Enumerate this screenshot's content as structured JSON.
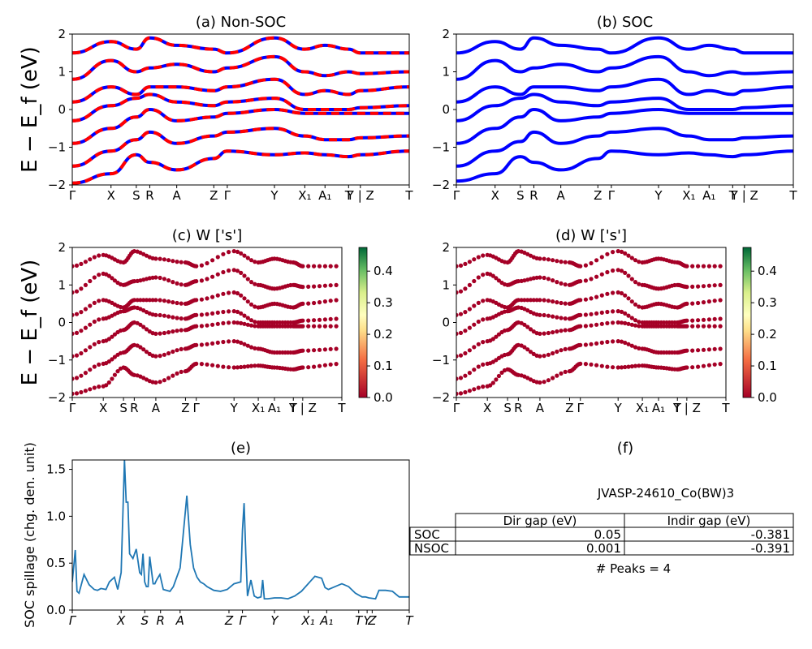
{
  "figure": {
    "table_title": "JVASP-24610_Co(BW)3",
    "peaks_text": "# Peaks = 4",
    "table": {
      "headers": [
        "",
        "Dir gap (eV)",
        "Indir gap (eV)"
      ],
      "rows": [
        {
          "label": "SOC",
          "dir": "0.05",
          "indir": "-0.381"
        },
        {
          "label": "NSOC",
          "dir": "0.001",
          "indir": "-0.391"
        }
      ]
    },
    "colors": {
      "nonsoc": "#ff0000",
      "soc": "#0000ff",
      "proj": "#a50026",
      "spillage": "#1f77b4"
    }
  },
  "chart_data": [
    {
      "panel": "a",
      "type": "line",
      "title": "(a) Non-SOC",
      "ylabel": "E − E_f (eV)",
      "ylim": [
        -2,
        2
      ],
      "yticks": [
        "2",
        "1",
        "0",
        "−1",
        "−2"
      ],
      "xticks": [
        "Γ",
        "X",
        "S",
        "R",
        "A",
        "Z",
        "Γ",
        "Y",
        "X₁",
        "A₁",
        "T",
        "Y | Z",
        "T"
      ],
      "series": [
        {
          "values": [
            -1.95,
            -1.7,
            -1.2,
            -1.4,
            -1.6,
            -1.3,
            -1.1,
            -1.2,
            -1.15,
            -1.2,
            -1.25,
            -1.2,
            -1.1
          ]
        },
        {
          "values": [
            -1.5,
            -1.1,
            -0.8,
            -0.6,
            -0.9,
            -0.7,
            -0.6,
            -0.5,
            -0.7,
            -0.8,
            -0.8,
            -0.75,
            -0.7
          ]
        },
        {
          "values": [
            -0.9,
            -0.5,
            -0.2,
            0.0,
            -0.3,
            -0.2,
            -0.1,
            0.0,
            -0.1,
            -0.1,
            -0.1,
            -0.1,
            -0.1
          ]
        },
        {
          "values": [
            -0.3,
            0.1,
            0.3,
            0.4,
            0.2,
            0.1,
            0.2,
            0.3,
            0.0,
            0.0,
            0.0,
            0.05,
            0.1
          ]
        },
        {
          "values": [
            0.2,
            0.6,
            0.4,
            0.6,
            0.6,
            0.5,
            0.6,
            0.8,
            0.4,
            0.5,
            0.4,
            0.5,
            0.6
          ]
        },
        {
          "values": [
            0.8,
            1.3,
            1.0,
            1.1,
            1.2,
            1.0,
            1.1,
            1.4,
            1.0,
            0.9,
            1.0,
            0.95,
            1.0
          ]
        },
        {
          "values": [
            1.5,
            1.8,
            1.6,
            1.9,
            1.7,
            1.6,
            1.5,
            1.9,
            1.6,
            1.7,
            1.6,
            1.5,
            1.5
          ]
        }
      ]
    },
    {
      "panel": "b",
      "type": "line",
      "title": "(b) SOC",
      "ylim": [
        -2,
        2
      ],
      "yticks": [
        "2",
        "1",
        "0",
        "−1",
        "−2"
      ],
      "xticks": [
        "Γ",
        "X",
        "S",
        "R",
        "A",
        "Z",
        "Γ",
        "Y",
        "X₁",
        "A₁",
        "T",
        "Y | Z",
        "T"
      ],
      "series": [
        {
          "values": [
            -1.9,
            -1.7,
            -1.25,
            -1.4,
            -1.6,
            -1.3,
            -1.1,
            -1.2,
            -1.15,
            -1.2,
            -1.25,
            -1.2,
            -1.1
          ]
        },
        {
          "values": [
            -1.5,
            -1.1,
            -0.85,
            -0.6,
            -0.9,
            -0.7,
            -0.6,
            -0.5,
            -0.7,
            -0.8,
            -0.8,
            -0.75,
            -0.7
          ]
        },
        {
          "values": [
            -0.9,
            -0.5,
            -0.2,
            0.0,
            -0.3,
            -0.2,
            -0.1,
            0.0,
            -0.1,
            -0.1,
            -0.1,
            -0.1,
            -0.1
          ]
        },
        {
          "values": [
            -0.3,
            0.1,
            0.3,
            0.4,
            0.2,
            0.1,
            0.2,
            0.3,
            0.0,
            0.0,
            0.0,
            0.05,
            0.1
          ]
        },
        {
          "values": [
            0.2,
            0.6,
            0.4,
            0.6,
            0.6,
            0.5,
            0.6,
            0.8,
            0.4,
            0.5,
            0.4,
            0.5,
            0.6
          ]
        },
        {
          "values": [
            0.8,
            1.3,
            1.0,
            1.1,
            1.2,
            1.0,
            1.1,
            1.4,
            1.0,
            0.9,
            1.0,
            0.95,
            1.0
          ]
        },
        {
          "values": [
            1.5,
            1.8,
            1.6,
            1.9,
            1.7,
            1.6,
            1.5,
            1.9,
            1.6,
            1.7,
            1.6,
            1.5,
            1.5
          ]
        }
      ]
    },
    {
      "panel": "c",
      "type": "scatter",
      "title": "(c)  W ['s']",
      "ylabel": "E − E_f (eV)",
      "ylim": [
        -2,
        2
      ],
      "yticks": [
        "2",
        "1",
        "0",
        "−1",
        "−2"
      ],
      "xticks": [
        "Γ",
        "X",
        "S",
        "R",
        "A",
        "Z",
        "Γ",
        "Y",
        "X₁",
        "A₁",
        "T",
        "Y | Z",
        "T"
      ],
      "colorbar_ticks": [
        "0.4",
        "0.3",
        "0.2",
        "0.1",
        "0.0"
      ],
      "series": [
        {
          "values": [
            -1.9,
            -1.7,
            -1.2,
            -1.4,
            -1.6,
            -1.3,
            -1.1,
            -1.2,
            -1.15,
            -1.2,
            -1.25,
            -1.2,
            -1.1
          ]
        },
        {
          "values": [
            -1.5,
            -1.1,
            -0.8,
            -0.6,
            -0.9,
            -0.7,
            -0.6,
            -0.5,
            -0.7,
            -0.8,
            -0.8,
            -0.75,
            -0.7
          ]
        },
        {
          "values": [
            -0.9,
            -0.5,
            -0.2,
            0.0,
            -0.3,
            -0.2,
            -0.1,
            0.0,
            -0.1,
            -0.1,
            -0.1,
            -0.1,
            -0.1
          ]
        },
        {
          "values": [
            -0.3,
            0.1,
            0.3,
            0.4,
            0.2,
            0.1,
            0.2,
            0.3,
            0.0,
            0.0,
            0.0,
            0.05,
            0.1
          ]
        },
        {
          "values": [
            0.2,
            0.6,
            0.4,
            0.6,
            0.6,
            0.5,
            0.6,
            0.8,
            0.4,
            0.5,
            0.4,
            0.5,
            0.6
          ]
        },
        {
          "values": [
            0.8,
            1.3,
            1.0,
            1.1,
            1.2,
            1.0,
            1.1,
            1.4,
            1.0,
            0.9,
            1.0,
            0.95,
            1.0
          ]
        },
        {
          "values": [
            1.5,
            1.8,
            1.6,
            1.9,
            1.7,
            1.6,
            1.5,
            1.9,
            1.6,
            1.7,
            1.6,
            1.5,
            1.5
          ]
        }
      ]
    },
    {
      "panel": "d",
      "type": "scatter",
      "title": "(d) W ['s']",
      "ylim": [
        -2,
        2
      ],
      "yticks": [
        "2",
        "1",
        "0",
        "−1",
        "−2"
      ],
      "xticks": [
        "Γ",
        "X",
        "S",
        "R",
        "A",
        "Z",
        "Γ",
        "Y",
        "X₁",
        "A₁",
        "T",
        "Y | Z",
        "T"
      ],
      "colorbar_ticks": [
        "0.4",
        "0.3",
        "0.2",
        "0.1",
        "0.0"
      ],
      "series": [
        {
          "values": [
            -1.9,
            -1.7,
            -1.25,
            -1.4,
            -1.6,
            -1.3,
            -1.1,
            -1.2,
            -1.15,
            -1.2,
            -1.25,
            -1.2,
            -1.1
          ]
        },
        {
          "values": [
            -1.5,
            -1.1,
            -0.85,
            -0.6,
            -0.9,
            -0.7,
            -0.6,
            -0.5,
            -0.7,
            -0.8,
            -0.8,
            -0.75,
            -0.7
          ]
        },
        {
          "values": [
            -0.9,
            -0.5,
            -0.2,
            0.0,
            -0.3,
            -0.2,
            -0.1,
            0.0,
            -0.1,
            -0.1,
            -0.1,
            -0.1,
            -0.1
          ]
        },
        {
          "values": [
            -0.3,
            0.1,
            0.3,
            0.4,
            0.2,
            0.1,
            0.2,
            0.3,
            0.0,
            0.0,
            0.0,
            0.05,
            0.1
          ]
        },
        {
          "values": [
            0.2,
            0.6,
            0.4,
            0.6,
            0.6,
            0.5,
            0.6,
            0.8,
            0.4,
            0.5,
            0.4,
            0.5,
            0.6
          ]
        },
        {
          "values": [
            0.8,
            1.3,
            1.0,
            1.1,
            1.2,
            1.0,
            1.1,
            1.4,
            1.0,
            0.9,
            1.0,
            0.95,
            1.0
          ]
        },
        {
          "values": [
            1.5,
            1.8,
            1.6,
            1.9,
            1.7,
            1.6,
            1.5,
            1.9,
            1.6,
            1.7,
            1.6,
            1.5,
            1.5
          ]
        }
      ]
    },
    {
      "panel": "e",
      "type": "line",
      "title": "(e)",
      "ylabel": "SOC spillage (chg. den. unit)",
      "ylim": [
        0,
        1.6
      ],
      "yticks": [
        "1.5",
        "1.0",
        "0.5",
        "0.0"
      ],
      "xticks": [
        "Γ",
        "X",
        "S",
        "R",
        "A",
        "Z",
        "Γ",
        "Y",
        "X₁",
        "A₁",
        "T",
        "Y",
        "Z",
        "T"
      ],
      "series": [
        {
          "x": [
            0,
            0.009,
            0.014,
            0.02,
            0.035,
            0.05,
            0.065,
            0.075,
            0.085,
            0.1,
            0.11,
            0.125,
            0.135,
            0.145,
            0.155,
            0.16,
            0.165,
            0.17,
            0.18,
            0.19,
            0.2,
            0.205,
            0.21,
            0.215,
            0.22,
            0.225,
            0.23,
            0.24,
            0.245,
            0.25,
            0.26,
            0.27,
            0.28,
            0.29,
            0.3,
            0.32,
            0.34,
            0.35,
            0.36,
            0.37,
            0.38,
            0.39,
            0.4,
            0.42,
            0.44,
            0.46,
            0.48,
            0.5,
            0.505,
            0.51,
            0.515,
            0.52,
            0.53,
            0.54,
            0.55,
            0.56,
            0.565,
            0.57,
            0.58,
            0.6,
            0.62,
            0.64,
            0.66,
            0.68,
            0.7,
            0.72,
            0.74,
            0.75,
            0.76,
            0.78,
            0.8,
            0.82,
            0.84,
            0.86,
            0.87,
            0.88,
            0.9,
            0.91,
            0.93,
            0.95,
            0.97,
            0.99,
            1.0
          ],
          "values": [
            0.3,
            0.64,
            0.2,
            0.18,
            0.38,
            0.27,
            0.22,
            0.21,
            0.23,
            0.22,
            0.3,
            0.35,
            0.22,
            0.4,
            1.6,
            1.15,
            1.15,
            0.6,
            0.55,
            0.65,
            0.4,
            0.38,
            0.6,
            0.3,
            0.25,
            0.25,
            0.57,
            0.28,
            0.28,
            0.32,
            0.38,
            0.22,
            0.21,
            0.2,
            0.25,
            0.45,
            1.22,
            0.7,
            0.45,
            0.35,
            0.3,
            0.28,
            0.25,
            0.21,
            0.2,
            0.22,
            0.28,
            0.3,
            0.85,
            1.14,
            0.6,
            0.15,
            0.32,
            0.15,
            0.13,
            0.14,
            0.32,
            0.12,
            0.12,
            0.13,
            0.13,
            0.12,
            0.15,
            0.2,
            0.28,
            0.36,
            0.34,
            0.24,
            0.22,
            0.25,
            0.28,
            0.25,
            0.18,
            0.14,
            0.14,
            0.13,
            0.12,
            0.21,
            0.21,
            0.2,
            0.14,
            0.14,
            0.14
          ]
        }
      ]
    }
  ]
}
